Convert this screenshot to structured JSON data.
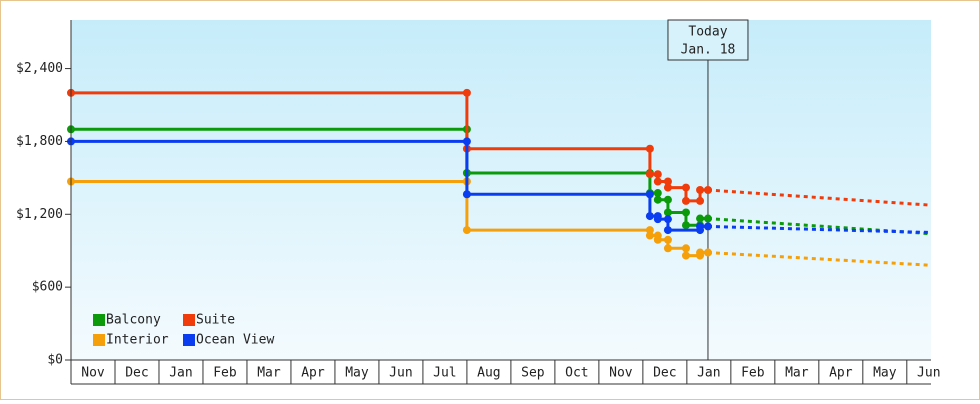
{
  "chart_data": {
    "type": "line",
    "ylim": [
      0,
      2800
    ],
    "yticks": [
      {
        "value": 0,
        "label": "$0"
      },
      {
        "value": 600,
        "label": "$600"
      },
      {
        "value": 1200,
        "label": "$1,200"
      },
      {
        "value": 1800,
        "label": "$1,800"
      },
      {
        "value": 2400,
        "label": "$2,400"
      }
    ],
    "xlim": [
      0,
      19.55
    ],
    "xticks": [
      {
        "value": 0.5,
        "label": "Nov"
      },
      {
        "value": 1.5,
        "label": "Dec"
      },
      {
        "value": 2.5,
        "label": "Jan"
      },
      {
        "value": 3.5,
        "label": "Feb"
      },
      {
        "value": 4.5,
        "label": "Mar"
      },
      {
        "value": 5.5,
        "label": "Apr"
      },
      {
        "value": 6.5,
        "label": "May"
      },
      {
        "value": 7.5,
        "label": "Jun"
      },
      {
        "value": 8.5,
        "label": "Jul"
      },
      {
        "value": 9.5,
        "label": "Aug"
      },
      {
        "value": 10.5,
        "label": "Sep"
      },
      {
        "value": 11.5,
        "label": "Oct"
      },
      {
        "value": 12.5,
        "label": "Nov"
      },
      {
        "value": 13.5,
        "label": "Dec"
      },
      {
        "value": 14.5,
        "label": "Jan"
      },
      {
        "value": 15.5,
        "label": "Feb"
      },
      {
        "value": 16.5,
        "label": "Mar"
      },
      {
        "value": 17.5,
        "label": "Apr"
      },
      {
        "value": 18.5,
        "label": "May"
      },
      {
        "value": 19.5,
        "label": "Jun"
      }
    ],
    "annotation": {
      "x": 14.48,
      "lines": [
        "Today",
        "Jan. 18"
      ]
    },
    "series": [
      {
        "name": "Balcony",
        "color": "#0a9a0a",
        "x": [
          0,
          9,
          9,
          13.16,
          13.16,
          13.34,
          13.34,
          13.57,
          13.57,
          13.98,
          13.98,
          14.3,
          14.3,
          14.48
        ],
        "values": [
          1900,
          1900,
          1540,
          1540,
          1375,
          1375,
          1320,
          1320,
          1215,
          1215,
          1110,
          1110,
          1165,
          1165
        ],
        "forecast": {
          "x": [
            14.48,
            19.55
          ],
          "values": [
            1165,
            1040
          ]
        }
      },
      {
        "name": "Suite",
        "color": "#f03c0a",
        "x": [
          0,
          9,
          9,
          13.16,
          13.16,
          13.34,
          13.34,
          13.57,
          13.57,
          13.98,
          13.98,
          14.3,
          14.3,
          14.48
        ],
        "values": [
          2200,
          2200,
          1740,
          1740,
          1530,
          1530,
          1470,
          1470,
          1420,
          1420,
          1310,
          1310,
          1400,
          1400
        ],
        "forecast": {
          "x": [
            14.48,
            19.55
          ],
          "values": [
            1400,
            1275
          ]
        }
      },
      {
        "name": "Interior",
        "color": "#f5a00a",
        "x": [
          0,
          9,
          9,
          13.16,
          13.16,
          13.34,
          13.34,
          13.57,
          13.57,
          13.98,
          13.98,
          14.3,
          14.3,
          14.48
        ],
        "values": [
          1470,
          1470,
          1070,
          1070,
          1025,
          1025,
          990,
          990,
          920,
          920,
          860,
          860,
          885,
          885
        ],
        "forecast": {
          "x": [
            14.48,
            19.55
          ],
          "values": [
            885,
            780
          ]
        }
      },
      {
        "name": "Ocean View",
        "color": "#0a3cf0",
        "x": [
          0,
          9,
          9,
          13.16,
          13.16,
          13.34,
          13.34,
          13.57,
          13.57,
          14.3,
          14.3,
          14.48
        ],
        "values": [
          1800,
          1800,
          1365,
          1365,
          1185,
          1185,
          1160,
          1160,
          1070,
          1070,
          1100,
          1100
        ],
        "forecast": {
          "x": [
            14.48,
            19.55
          ],
          "values": [
            1100,
            1050
          ]
        }
      }
    ]
  }
}
